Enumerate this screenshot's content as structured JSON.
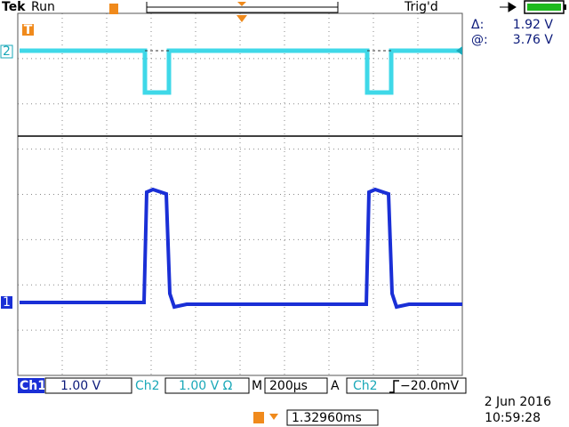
{
  "header": {
    "brand": "Tek",
    "status": "Run",
    "trigger_status": "Trig'd"
  },
  "cursor": {
    "delta_label": "Δ:",
    "delta": "1.92 V",
    "at_label": "@:",
    "at": "3.76 V"
  },
  "markers": {
    "ch2": "2",
    "ch1": "1",
    "trigger": "T"
  },
  "footer": {
    "ch1": "Ch1",
    "ch1_scale": "1.00 V",
    "ch2": "Ch2",
    "ch2_scale": "1.00 V Ω",
    "timebase_label": "M",
    "timebase": "200µs",
    "trigger_label": "A",
    "trigger_source": "Ch2",
    "trigger_level": "−20.0mV",
    "date": "2 Jun  2016",
    "time": "10:59:28",
    "position": "1.32960ms"
  }
}
